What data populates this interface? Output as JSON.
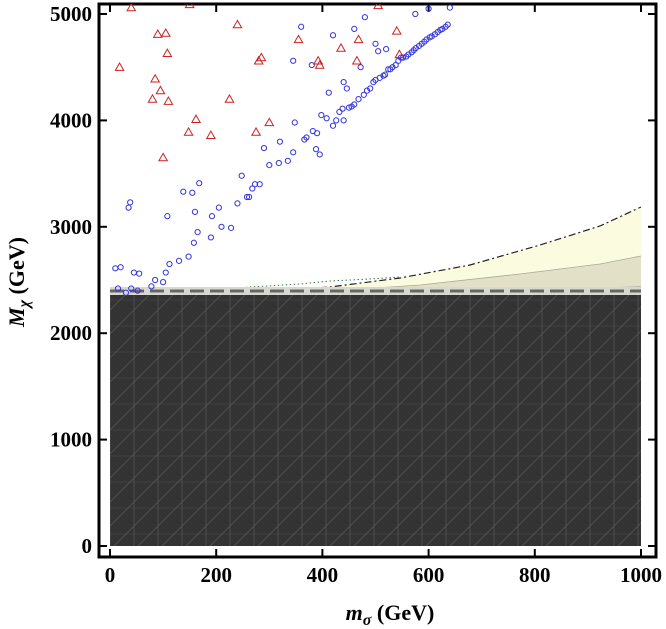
{
  "chart_data": {
    "type": "scatter",
    "title": "",
    "xlabel_main": "m",
    "xlabel_sub": "σ",
    "xlabel_unit": " (GeV)",
    "ylabel_main": "M",
    "ylabel_sub": "χ",
    "ylabel_unit": " (GeV)",
    "xlim": [
      0,
      1000
    ],
    "ylim": [
      0,
      5100
    ],
    "x_ticks": [
      0,
      200,
      400,
      600,
      800,
      1000
    ],
    "y_ticks": [
      0,
      1000,
      2000,
      3000,
      4000,
      5000
    ],
    "x_tick_labels": [
      "0",
      "200",
      "400",
      "600",
      "800",
      "1000"
    ],
    "y_tick_labels": [
      "0",
      "1000",
      "2000",
      "3000",
      "4000",
      "5000"
    ],
    "grid": false,
    "colors": {
      "circles": "#3333dd",
      "triangles": "#cc2222",
      "excluded_dark": "#333333",
      "band_yellow": "#fbfbe0",
      "band_tan": "#e2e1c8",
      "band_gray": "#b4b4aa"
    },
    "series": [
      {
        "marker": "circle",
        "points": [
          [
            10,
            2610
          ],
          [
            20,
            2620
          ],
          [
            15,
            2420
          ],
          [
            30,
            2380
          ],
          [
            40,
            2420
          ],
          [
            45,
            2570
          ],
          [
            35,
            3180
          ],
          [
            38,
            3230
          ],
          [
            55,
            2560
          ],
          [
            52,
            2400
          ],
          [
            78,
            2440
          ],
          [
            85,
            2500
          ],
          [
            100,
            2480
          ],
          [
            105,
            2570
          ],
          [
            108,
            3100
          ],
          [
            112,
            2650
          ],
          [
            130,
            2680
          ],
          [
            138,
            3330
          ],
          [
            148,
            2720
          ],
          [
            158,
            2850
          ],
          [
            160,
            3140
          ],
          [
            165,
            2950
          ],
          [
            168,
            3410
          ],
          [
            155,
            3320
          ],
          [
            190,
            2900
          ],
          [
            192,
            3100
          ],
          [
            205,
            3180
          ],
          [
            210,
            3000
          ],
          [
            228,
            2990
          ],
          [
            240,
            3220
          ],
          [
            248,
            3480
          ],
          [
            258,
            3280
          ],
          [
            262,
            3280
          ],
          [
            268,
            3360
          ],
          [
            273,
            3400
          ],
          [
            282,
            3400
          ],
          [
            290,
            3740
          ],
          [
            300,
            3580
          ],
          [
            318,
            3600
          ],
          [
            320,
            3800
          ],
          [
            335,
            3620
          ],
          [
            345,
            3700
          ],
          [
            348,
            3980
          ],
          [
            366,
            3820
          ],
          [
            370,
            3840
          ],
          [
            382,
            3900
          ],
          [
            388,
            3730
          ],
          [
            390,
            3880
          ],
          [
            395,
            3680
          ],
          [
            398,
            4050
          ],
          [
            408,
            4020
          ],
          [
            412,
            4260
          ],
          [
            420,
            3950
          ],
          [
            426,
            4000
          ],
          [
            432,
            4080
          ],
          [
            438,
            4110
          ],
          [
            440,
            4000
          ],
          [
            446,
            4300
          ],
          [
            450,
            4120
          ],
          [
            455,
            4130
          ],
          [
            460,
            4150
          ],
          [
            468,
            4200
          ],
          [
            472,
            4500
          ],
          [
            478,
            4240
          ],
          [
            484,
            4280
          ],
          [
            490,
            4300
          ],
          [
            496,
            4360
          ],
          [
            500,
            4380
          ],
          [
            505,
            4650
          ],
          [
            508,
            4400
          ],
          [
            515,
            4420
          ],
          [
            518,
            4430
          ],
          [
            524,
            4480
          ],
          [
            528,
            4480
          ],
          [
            532,
            4500
          ],
          [
            538,
            4520
          ],
          [
            543,
            4560
          ],
          [
            548,
            4590
          ],
          [
            552,
            4590
          ],
          [
            558,
            4600
          ],
          [
            562,
            4620
          ],
          [
            568,
            4640
          ],
          [
            572,
            4660
          ],
          [
            576,
            4680
          ],
          [
            582,
            4700
          ],
          [
            587,
            4720
          ],
          [
            592,
            4740
          ],
          [
            596,
            4760
          ],
          [
            602,
            4780
          ],
          [
            606,
            4790
          ],
          [
            612,
            4810
          ],
          [
            617,
            4830
          ],
          [
            622,
            4850
          ],
          [
            626,
            4860
          ],
          [
            632,
            4880
          ],
          [
            636,
            4900
          ],
          [
            360,
            4880
          ],
          [
            420,
            4800
          ],
          [
            460,
            4860
          ],
          [
            480,
            4970
          ],
          [
            520,
            4670
          ],
          [
            575,
            5000
          ],
          [
            600,
            5050
          ],
          [
            640,
            5060
          ],
          [
            345,
            4560
          ],
          [
            380,
            4520
          ],
          [
            440,
            4360
          ],
          [
            500,
            4720
          ]
        ]
      },
      {
        "marker": "triangle",
        "points": [
          [
            18,
            4500
          ],
          [
            40,
            5060
          ],
          [
            80,
            4200
          ],
          [
            85,
            4390
          ],
          [
            90,
            4810
          ],
          [
            95,
            4280
          ],
          [
            100,
            3650
          ],
          [
            105,
            4820
          ],
          [
            108,
            4630
          ],
          [
            110,
            4180
          ],
          [
            148,
            3890
          ],
          [
            150,
            5090
          ],
          [
            162,
            4010
          ],
          [
            190,
            3860
          ],
          [
            225,
            4200
          ],
          [
            240,
            4900
          ],
          [
            275,
            3890
          ],
          [
            280,
            4560
          ],
          [
            285,
            4590
          ],
          [
            300,
            3980
          ],
          [
            355,
            4760
          ],
          [
            392,
            4560
          ],
          [
            395,
            4520
          ],
          [
            435,
            4680
          ],
          [
            465,
            4560
          ],
          [
            468,
            4760
          ],
          [
            505,
            5080
          ],
          [
            540,
            4840
          ],
          [
            545,
            4620
          ]
        ]
      }
    ]
  }
}
